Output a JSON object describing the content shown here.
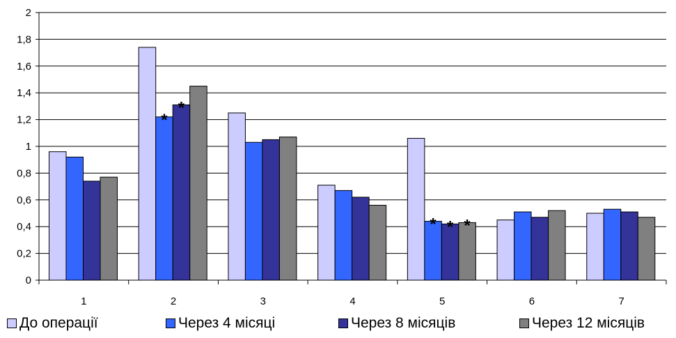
{
  "chart_data": {
    "type": "bar",
    "categories": [
      "1",
      "2",
      "3",
      "4",
      "5",
      "6",
      "7"
    ],
    "series": [
      {
        "name": "До операції",
        "color": "#ccccff",
        "values": [
          0.96,
          1.74,
          1.25,
          0.71,
          1.06,
          0.45,
          0.5
        ]
      },
      {
        "name": "Через 4 місяці",
        "color": "#3366ff",
        "values": [
          0.92,
          1.22,
          1.03,
          0.67,
          0.44,
          0.51,
          0.53
        ]
      },
      {
        "name": "Через 8 місяців",
        "color": "#333399",
        "values": [
          0.74,
          1.31,
          1.05,
          0.62,
          0.42,
          0.47,
          0.51
        ]
      },
      {
        "name": "Через 12 місяців",
        "color": "#808080",
        "values": [
          0.77,
          1.45,
          1.07,
          0.56,
          0.43,
          0.52,
          0.47
        ]
      }
    ],
    "y_ticks": [
      "0",
      "0,2",
      "0,4",
      "0,6",
      "0,8",
      "1",
      "1,2",
      "1,4",
      "1,6",
      "1,8",
      "2"
    ],
    "ylim": [
      0,
      2
    ],
    "grid": true,
    "legend_position": "bottom",
    "annotations": [
      {
        "text": "*",
        "category": "2",
        "series": 1
      },
      {
        "text": "*",
        "category": "2",
        "series": 2
      },
      {
        "text": "*",
        "category": "5",
        "series": 1
      },
      {
        "text": "*",
        "category": "5",
        "series": 2
      },
      {
        "text": "*",
        "category": "5",
        "series": 3
      }
    ]
  }
}
